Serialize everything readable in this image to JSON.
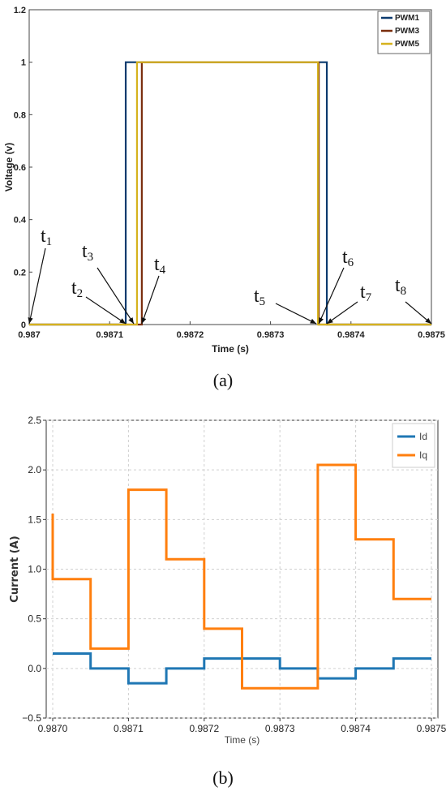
{
  "chart_data": [
    {
      "type": "line",
      "xlabel": "Time (s)",
      "ylabel": "Voltage (v)",
      "xlim": [
        0.987,
        0.9875
      ],
      "ylim": [
        0,
        1.2
      ],
      "xticks": [
        "0.987",
        "0.9871",
        "0.9872",
        "0.9873",
        "0.9874",
        "0.9875"
      ],
      "yticks": [
        "0",
        "0.2",
        "0.4",
        "0.6",
        "0.8",
        "1",
        "1.2"
      ],
      "grid": false,
      "legend_position": "top-right",
      "series": [
        {
          "name": "PWM1",
          "color": "#0b3a6e",
          "x": [
            0.987,
            0.98712,
            0.98712,
            0.98737,
            0.98737,
            0.9875
          ],
          "y": [
            0,
            0,
            1,
            1,
            0,
            0
          ]
        },
        {
          "name": "PWM3",
          "color": "#7a2e0e",
          "x": [
            0.987,
            0.98714,
            0.98714,
            0.98736,
            0.98736,
            0.9875
          ],
          "y": [
            0,
            0,
            1,
            1,
            0,
            0
          ]
        },
        {
          "name": "PWM5",
          "color": "#d6b21e",
          "x": [
            0.987,
            0.987134,
            0.987134,
            0.987359,
            0.987359,
            0.9875
          ],
          "y": [
            0,
            0,
            1,
            1,
            0,
            0
          ]
        }
      ],
      "annotations": [
        {
          "label": "t",
          "sub": "1",
          "x": 0.987,
          "y": 0
        },
        {
          "label": "t",
          "sub": "2",
          "x": 0.98712,
          "y": 0
        },
        {
          "label": "t",
          "sub": "3",
          "x": 0.98713,
          "y": 0
        },
        {
          "label": "t",
          "sub": "4",
          "x": 0.98714,
          "y": 0
        },
        {
          "label": "t",
          "sub": "5",
          "x": 0.987357,
          "y": 0
        },
        {
          "label": "t",
          "sub": "6",
          "x": 0.98736,
          "y": 0
        },
        {
          "label": "t",
          "sub": "7",
          "x": 0.98737,
          "y": 0
        },
        {
          "label": "t",
          "sub": "8",
          "x": 0.9875,
          "y": 0
        }
      ],
      "caption": "(a)"
    },
    {
      "type": "line",
      "xlabel": "Time (s)",
      "ylabel": "Current (A)",
      "xlim": [
        0.987,
        0.9875
      ],
      "ylim": [
        -0.5,
        2.5
      ],
      "xticks": [
        "0.9870",
        "0.9871",
        "0.9872",
        "0.9873",
        "0.9874",
        "0.9875"
      ],
      "yticks": [
        "−0.5",
        "0.0",
        "0.5",
        "1.0",
        "1.5",
        "2.0",
        "2.5"
      ],
      "grid": true,
      "legend_position": "top-right",
      "series": [
        {
          "name": "Id",
          "color": "#1f77b4",
          "x": [
            0.987,
            0.98705,
            0.98705,
            0.9871,
            0.9871,
            0.98715,
            0.98715,
            0.9872,
            0.9872,
            0.98725,
            0.98725,
            0.9873,
            0.9873,
            0.98735,
            0.98735,
            0.9874,
            0.9874,
            0.98745,
            0.98745,
            0.9875
          ],
          "y": [
            0.15,
            0.15,
            0.0,
            0.0,
            -0.15,
            -0.15,
            0.0,
            0.0,
            0.1,
            0.1,
            0.1,
            0.1,
            0.0,
            0.0,
            -0.1,
            -0.1,
            0.0,
            0.0,
            0.1,
            0.1
          ]
        },
        {
          "name": "Iq",
          "color": "#ff7f0e",
          "x": [
            0.987,
            0.987,
            0.98705,
            0.98705,
            0.9871,
            0.9871,
            0.98715,
            0.98715,
            0.9872,
            0.9872,
            0.98725,
            0.98725,
            0.9873,
            0.9873,
            0.98735,
            0.98735,
            0.9874,
            0.9874,
            0.98745,
            0.98745,
            0.9875
          ],
          "y": [
            1.56,
            0.9,
            0.9,
            0.2,
            0.2,
            1.8,
            1.8,
            1.1,
            1.1,
            0.4,
            0.4,
            -0.2,
            -0.2,
            -0.2,
            -0.2,
            2.05,
            2.05,
            1.3,
            1.3,
            0.7,
            0.7
          ]
        }
      ],
      "caption": "(b)"
    }
  ]
}
